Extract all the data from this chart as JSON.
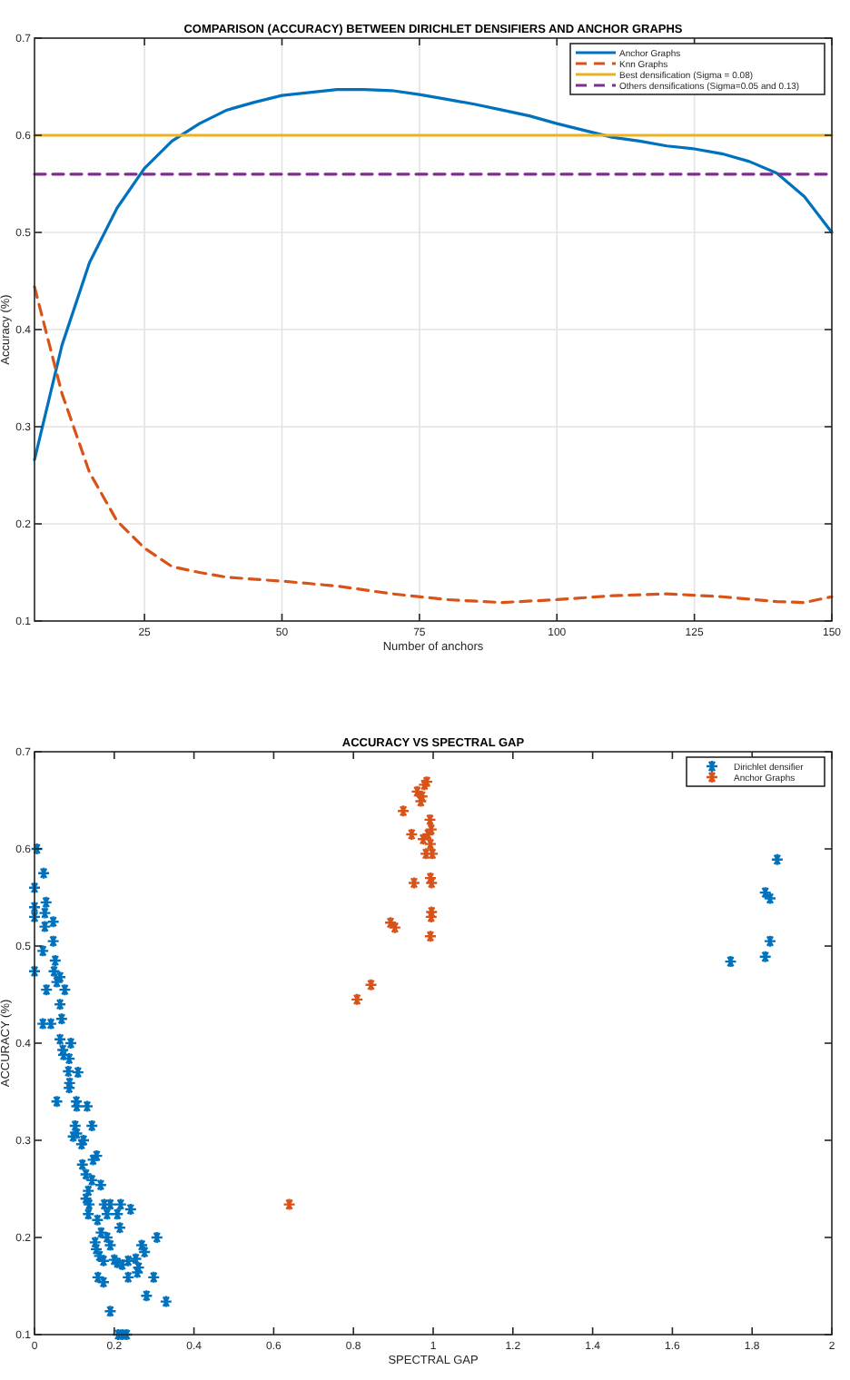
{
  "chart_data": [
    {
      "type": "line",
      "title": "COMPARISON (ACCURACY) BETWEEN DIRICHLET DENSIFIERS AND ANCHOR GRAPHS",
      "xlabel": "Number of anchors",
      "ylabel": "Accuracy (%)",
      "xlim": [
        5,
        150
      ],
      "xticks": [
        25,
        50,
        75,
        100,
        125,
        150
      ],
      "ylim": [
        0.1,
        0.7
      ],
      "yticks": [
        0.1,
        0.2,
        0.3,
        0.4,
        0.5,
        0.6,
        0.7
      ],
      "grid": true,
      "legend": "top right",
      "marker": "none",
      "series": [
        {
          "name": "Anchor Graphs",
          "color": "#0072bd",
          "line_style": "solid",
          "x": [
            5,
            10,
            15,
            20,
            25,
            30,
            35,
            40,
            45,
            50,
            55,
            60,
            65,
            70,
            75,
            80,
            85,
            90,
            95,
            100,
            105,
            110,
            115,
            120,
            125,
            130,
            135,
            140,
            145,
            150
          ],
          "values": [
            0.266,
            0.384,
            0.469,
            0.525,
            0.566,
            0.594,
            0.612,
            0.626,
            0.634,
            0.641,
            0.644,
            0.647,
            0.647,
            0.646,
            0.642,
            0.637,
            0.632,
            0.626,
            0.62,
            0.612,
            0.605,
            0.598,
            0.594,
            0.589,
            0.586,
            0.581,
            0.573,
            0.561,
            0.537,
            0.5
          ]
        },
        {
          "name": "Knn Graphs",
          "color": "#d95319",
          "line_style": "dashed",
          "x": [
            5,
            10,
            15,
            20,
            25,
            30,
            35,
            40,
            50,
            60,
            70,
            80,
            90,
            100,
            110,
            120,
            130,
            140,
            145,
            150
          ],
          "values": [
            0.444,
            0.334,
            0.253,
            0.203,
            0.175,
            0.156,
            0.15,
            0.145,
            0.141,
            0.136,
            0.128,
            0.122,
            0.119,
            0.122,
            0.126,
            0.128,
            0.125,
            0.12,
            0.119,
            0.125
          ]
        },
        {
          "name": "Best densification (Sigma = 0.08)",
          "color": "#edb120",
          "line_style": "solid",
          "x": [
            5,
            150
          ],
          "values": [
            0.6,
            0.6
          ]
        },
        {
          "name": "Others densifications (Sigma=0.05 and 0.13)",
          "color": "#7e2f8e",
          "line_style": "dashed",
          "x": [
            5,
            150
          ],
          "values": [
            0.56,
            0.56
          ]
        }
      ]
    },
    {
      "type": "scatter",
      "title": "ACCURACY VS SPECTRAL GAP",
      "xlabel": "SPECTRAL GAP",
      "ylabel": "ACCURACY (%)",
      "xlim": [
        0,
        2
      ],
      "xticks": [
        0,
        0.2,
        0.4,
        0.6,
        0.8,
        1,
        1.2,
        1.4,
        1.6,
        1.8,
        2
      ],
      "ylim": [
        0.1,
        0.7
      ],
      "yticks": [
        0.1,
        0.2,
        0.3,
        0.4,
        0.5,
        0.6,
        0.7
      ],
      "grid": false,
      "legend": "top right",
      "marker": "cross",
      "series": [
        {
          "name": "Dirichlet densifier",
          "color": "#0072bd",
          "x": [
            0.006,
            0,
            0.023,
            0,
            0,
            0.029,
            0.026,
            0.026,
            0.047,
            0.021,
            0.047,
            0,
            0.052,
            0.049,
            0.064,
            0.056,
            0.03,
            0.076,
            0.064,
            0.021,
            0.041,
            0.068,
            0.064,
            0.071,
            0.091,
            0.073,
            0.087,
            0.109,
            0.085,
            0.088,
            0.087,
            0.056,
            0.105,
            0.106,
            0.132,
            0.102,
            0.144,
            0.106,
            0.097,
            0.123,
            0.118,
            0.156,
            0.147,
            0.12,
            0.129,
            0.144,
            0.166,
            0.135,
            0.129,
            0.137,
            0.175,
            0.19,
            0.216,
            0.135,
            0.182,
            0.208,
            0.158,
            0.241,
            0.214,
            0.167,
            0.307,
            0.152,
            0.182,
            0.19,
            0.155,
            0.163,
            0.173,
            0.2,
            0.208,
            0.22,
            0.235,
            0.254,
            0.269,
            0.276,
            0.261,
            0.258,
            0.235,
            0.159,
            0.173,
            0.299,
            0.281,
            0.33,
            0.19,
            0.21,
            0.22,
            0.231,
            1.863,
            1.833,
            1.845,
            1.845,
            1.833,
            1.746
          ],
          "values": [
            0.6,
            0.56,
            0.575,
            0.54,
            0.53,
            0.545,
            0.534,
            0.52,
            0.525,
            0.495,
            0.505,
            0.474,
            0.485,
            0.474,
            0.468,
            0.463,
            0.455,
            0.455,
            0.44,
            0.42,
            0.42,
            0.425,
            0.404,
            0.393,
            0.4,
            0.388,
            0.384,
            0.37,
            0.371,
            0.359,
            0.354,
            0.34,
            0.34,
            0.335,
            0.335,
            0.315,
            0.315,
            0.307,
            0.304,
            0.3,
            0.296,
            0.284,
            0.28,
            0.275,
            0.265,
            0.259,
            0.254,
            0.248,
            0.24,
            0.234,
            0.234,
            0.234,
            0.234,
            0.224,
            0.224,
            0.224,
            0.218,
            0.229,
            0.21,
            0.205,
            0.2,
            0.195,
            0.2,
            0.192,
            0.188,
            0.181,
            0.176,
            0.177,
            0.174,
            0.172,
            0.176,
            0.178,
            0.192,
            0.185,
            0.169,
            0.164,
            0.159,
            0.159,
            0.154,
            0.159,
            0.14,
            0.134,
            0.124,
            0.1,
            0.1,
            0.1,
            0.589,
            0.555,
            0.549,
            0.505,
            0.489,
            0.484
          ]
        },
        {
          "name": "Anchor Graphs",
          "color": "#d95319",
          "x": [
            0.639,
            0.809,
            0.844,
            0.893,
            0.904,
            0.925,
            0.946,
            0.952,
            0.96,
            0.969,
            0.972,
            0.978,
            0.984,
            0.992,
            0.975,
            0.987,
            0.995,
            0.993,
            0.982,
            0.998,
            0.993,
            0.996,
            0.996,
            0.995,
            0.993
          ],
          "values": [
            0.234,
            0.445,
            0.46,
            0.524,
            0.519,
            0.639,
            0.615,
            0.565,
            0.659,
            0.649,
            0.654,
            0.666,
            0.669,
            0.63,
            0.61,
            0.615,
            0.62,
            0.605,
            0.595,
            0.595,
            0.57,
            0.565,
            0.535,
            0.53,
            0.51
          ]
        }
      ]
    }
  ]
}
